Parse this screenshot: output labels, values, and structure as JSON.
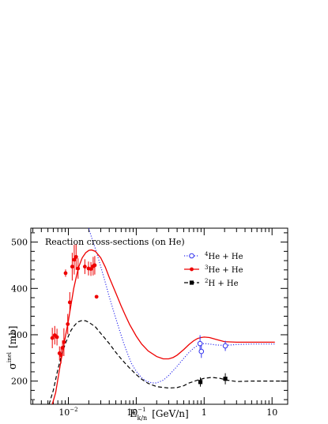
{
  "chart_data": {
    "type": "scatter",
    "title": "Reaction cross-sections (on He)",
    "xlabel": "E",
    "xlabel_sub": "k/n",
    "xlabel_unit": "[GeV/n]",
    "ylabel": "σ",
    "ylabel_sup": "inel",
    "ylabel_unit": "[mb]",
    "xscale": "log",
    "xlim": [
      0.0028,
      17
    ],
    "ylim": [
      150,
      530
    ],
    "x_ticks": [
      {
        "v": 0.01,
        "base": "10",
        "exp": "−2"
      },
      {
        "v": 0.1,
        "base": "10",
        "exp": "−1"
      },
      {
        "v": 1,
        "base": "1",
        "exp": ""
      },
      {
        "v": 10,
        "base": "10",
        "exp": ""
      }
    ],
    "y_ticks": [
      200,
      300,
      400,
      500
    ],
    "grid": false,
    "legend_position": "top-right",
    "series": [
      {
        "name": "He + He",
        "name_sup": "4",
        "color": "#3333ee",
        "line_style": "dotted",
        "marker": "open-circle",
        "curve": [
          [
            0.019,
            540
          ],
          [
            0.022,
            510
          ],
          [
            0.026,
            478
          ],
          [
            0.03,
            447
          ],
          [
            0.035,
            413
          ],
          [
            0.04,
            382
          ],
          [
            0.047,
            348
          ],
          [
            0.055,
            316
          ],
          [
            0.065,
            283
          ],
          [
            0.075,
            258
          ],
          [
            0.085,
            238
          ],
          [
            0.1,
            221
          ],
          [
            0.12,
            207
          ],
          [
            0.14,
            200
          ],
          [
            0.17,
            196
          ],
          [
            0.2,
            196
          ],
          [
            0.25,
            202
          ],
          [
            0.3,
            212
          ],
          [
            0.4,
            232
          ],
          [
            0.5,
            249
          ],
          [
            0.6,
            262
          ],
          [
            0.7,
            271
          ],
          [
            0.8,
            277
          ],
          [
            0.9,
            280
          ],
          [
            1.0,
            281
          ],
          [
            1.2,
            280
          ],
          [
            1.5,
            278
          ],
          [
            2.0,
            277
          ],
          [
            3.0,
            279
          ],
          [
            5.0,
            280
          ],
          [
            8.0,
            280
          ],
          [
            11.0,
            280
          ]
        ],
        "points": [
          {
            "x": 0.87,
            "y": 281,
            "err": 18
          },
          {
            "x": 0.91,
            "y": 264,
            "err": 14
          },
          {
            "x": 2.05,
            "y": 276,
            "err": 11
          }
        ]
      },
      {
        "name": "He + He",
        "name_sup": "3",
        "color": "#ee0000",
        "line_style": "solid",
        "marker": "filled-circle",
        "curve": [
          [
            0.0058,
            150
          ],
          [
            0.0065,
            175
          ],
          [
            0.0075,
            230
          ],
          [
            0.0085,
            275
          ],
          [
            0.01,
            330
          ],
          [
            0.012,
            400
          ],
          [
            0.014,
            444
          ],
          [
            0.016,
            466
          ],
          [
            0.018,
            477
          ],
          [
            0.02,
            482
          ],
          [
            0.022,
            483
          ],
          [
            0.025,
            480
          ],
          [
            0.03,
            466
          ],
          [
            0.035,
            446
          ],
          [
            0.04,
            424
          ],
          [
            0.05,
            390
          ],
          [
            0.06,
            362
          ],
          [
            0.07,
            340
          ],
          [
            0.08,
            322
          ],
          [
            0.1,
            297
          ],
          [
            0.12,
            280
          ],
          [
            0.15,
            265
          ],
          [
            0.2,
            253
          ],
          [
            0.25,
            248
          ],
          [
            0.3,
            248
          ],
          [
            0.35,
            251
          ],
          [
            0.4,
            256
          ],
          [
            0.5,
            268
          ],
          [
            0.6,
            279
          ],
          [
            0.7,
            287
          ],
          [
            0.8,
            292
          ],
          [
            0.9,
            294
          ],
          [
            1.0,
            295
          ],
          [
            1.2,
            294
          ],
          [
            1.5,
            290
          ],
          [
            2.0,
            285
          ],
          [
            3.0,
            284
          ],
          [
            5.0,
            284
          ],
          [
            8.0,
            284
          ],
          [
            11.0,
            284
          ]
        ],
        "points": [
          {
            "x": 0.0058,
            "y": 293,
            "err": 22
          },
          {
            "x": 0.0063,
            "y": 299,
            "err": 20
          },
          {
            "x": 0.0068,
            "y": 295,
            "err": 18
          },
          {
            "x": 0.0074,
            "y": 260,
            "err": 15
          },
          {
            "x": 0.0078,
            "y": 256,
            "err": 18
          },
          {
            "x": 0.0082,
            "y": 272,
            "err": 16
          },
          {
            "x": 0.0086,
            "y": 284,
            "err": 30
          },
          {
            "x": 0.0091,
            "y": 433,
            "err": 8
          },
          {
            "x": 0.0098,
            "y": 323,
            "err": 22
          },
          {
            "x": 0.0105,
            "y": 370,
            "err": 22
          },
          {
            "x": 0.0114,
            "y": 447,
            "err": 30
          },
          {
            "x": 0.0122,
            "y": 462,
            "err": 32
          },
          {
            "x": 0.013,
            "y": 468,
            "err": 28
          },
          {
            "x": 0.0139,
            "y": 443,
            "err": 22
          },
          {
            "x": 0.0175,
            "y": 447,
            "err": 16
          },
          {
            "x": 0.0198,
            "y": 443,
            "err": 15
          },
          {
            "x": 0.0215,
            "y": 442,
            "err": 15
          },
          {
            "x": 0.0232,
            "y": 448,
            "err": 20
          },
          {
            "x": 0.0245,
            "y": 450,
            "err": 20
          },
          {
            "x": 0.026,
            "y": 382,
            "err": 0
          }
        ]
      },
      {
        "name": "H + He",
        "name_sup": "2",
        "color": "#000000",
        "line_style": "dashed",
        "marker": "filled-square",
        "curve": [
          [
            0.0052,
            150
          ],
          [
            0.006,
            180
          ],
          [
            0.007,
            225
          ],
          [
            0.008,
            258
          ],
          [
            0.009,
            280
          ],
          [
            0.01,
            297
          ],
          [
            0.011,
            310
          ],
          [
            0.012,
            318
          ],
          [
            0.013,
            324
          ],
          [
            0.014,
            328
          ],
          [
            0.016,
            331
          ],
          [
            0.018,
            330
          ],
          [
            0.02,
            327
          ],
          [
            0.025,
            317
          ],
          [
            0.03,
            303
          ],
          [
            0.04,
            281
          ],
          [
            0.05,
            262
          ],
          [
            0.06,
            248
          ],
          [
            0.07,
            237
          ],
          [
            0.08,
            228
          ],
          [
            0.1,
            214
          ],
          [
            0.12,
            204
          ],
          [
            0.15,
            195
          ],
          [
            0.2,
            188
          ],
          [
            0.3,
            185
          ],
          [
            0.4,
            186
          ],
          [
            0.5,
            190
          ],
          [
            0.6,
            196
          ],
          [
            0.8,
            202
          ],
          [
            1.0,
            206
          ],
          [
            1.3,
            208
          ],
          [
            1.7,
            206
          ],
          [
            2.2,
            202
          ],
          [
            3.0,
            199
          ],
          [
            5.0,
            200
          ],
          [
            8.0,
            200
          ],
          [
            11.0,
            200
          ],
          [
            17.0,
            200
          ]
        ],
        "points": [
          {
            "x": 0.88,
            "y": 198,
            "err": 10
          },
          {
            "x": 2.05,
            "y": 205,
            "err": 12
          }
        ]
      }
    ]
  }
}
